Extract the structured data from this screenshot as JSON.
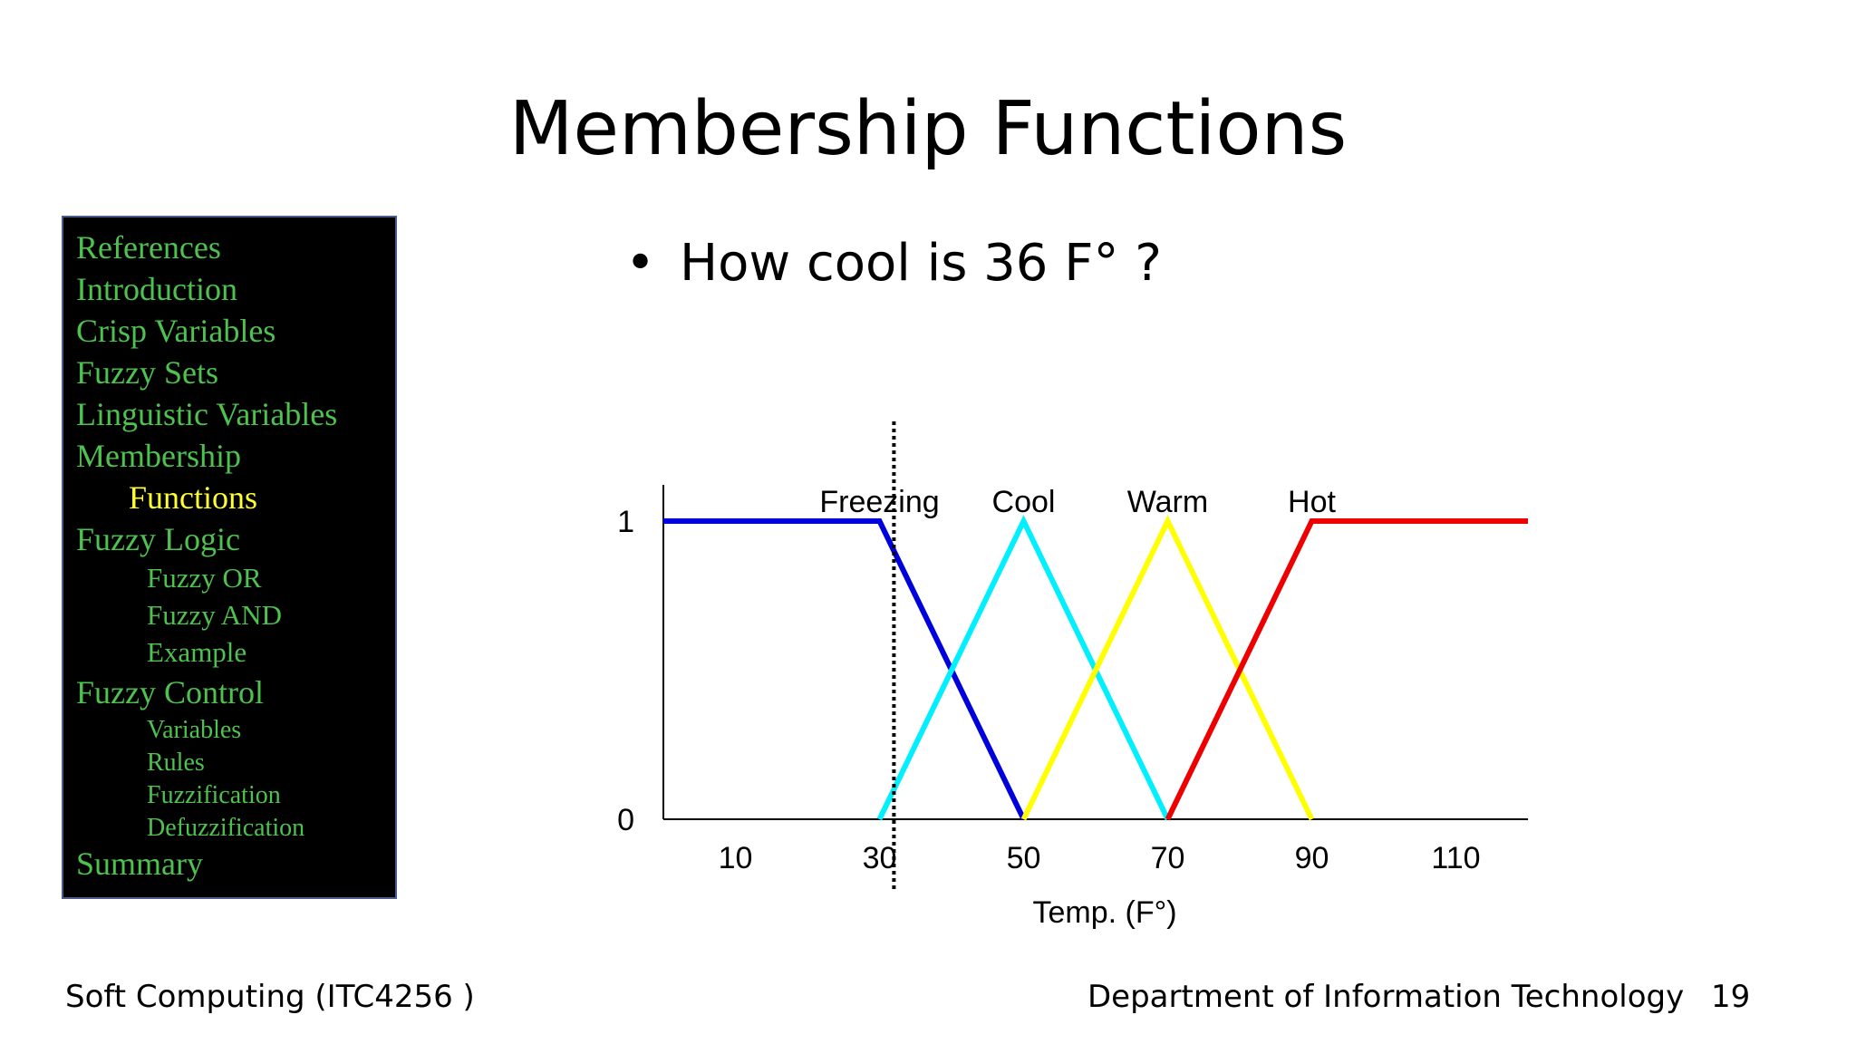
{
  "slide": {
    "title": "Membership Functions",
    "bullet": "How cool is 36 F° ?",
    "footer_left": "Soft Computing (ITC4256 )",
    "footer_center": "Department of Information Technology",
    "page_number": "19"
  },
  "nav": {
    "items": [
      {
        "label": "References",
        "level": 0
      },
      {
        "label": "Introduction",
        "level": 0
      },
      {
        "label": "Crisp Variables",
        "level": 0
      },
      {
        "label": "Fuzzy Sets",
        "level": 0
      },
      {
        "label": "Linguistic Variables",
        "level": 0
      },
      {
        "label": "Membership",
        "level": 0
      },
      {
        "label": "Functions",
        "level": 1,
        "active": true
      },
      {
        "label": "Fuzzy Logic",
        "level": 0
      },
      {
        "label": "Fuzzy OR",
        "level": 2
      },
      {
        "label": "Fuzzy AND",
        "level": 2
      },
      {
        "label": "Example",
        "level": 2
      },
      {
        "label": "Fuzzy Control",
        "level": 0
      },
      {
        "label": "Variables",
        "level": 3
      },
      {
        "label": "Rules",
        "level": 3
      },
      {
        "label": "Fuzzification",
        "level": 3
      },
      {
        "label": "Defuzzification",
        "level": 3
      },
      {
        "label": "Summary",
        "level": 0
      }
    ],
    "colors": {
      "text": "#4ec24e",
      "active": "#ffff33",
      "background": "#000000"
    }
  },
  "chart_data": {
    "type": "line",
    "xlabel": "Temp. (F°)",
    "ylabel": "",
    "xlim": [
      0,
      120
    ],
    "ylim": [
      0,
      1
    ],
    "x_ticks": [
      10,
      30,
      50,
      70,
      90,
      110
    ],
    "y_ticks": [
      0,
      1
    ],
    "marker_line": {
      "x": 32,
      "style": "dotted"
    },
    "series": [
      {
        "name": "Freezing",
        "color": "#0000dd",
        "points": [
          [
            0,
            1
          ],
          [
            30,
            1
          ],
          [
            50,
            0
          ]
        ],
        "label_x": 30
      },
      {
        "name": "Cool",
        "color": "#00f0ff",
        "points": [
          [
            30,
            0
          ],
          [
            50,
            1
          ],
          [
            70,
            0
          ]
        ],
        "label_x": 50
      },
      {
        "name": "Warm",
        "color": "#ffff00",
        "points": [
          [
            50,
            0
          ],
          [
            70,
            1
          ],
          [
            90,
            0
          ]
        ],
        "label_x": 70
      },
      {
        "name": "Hot",
        "color": "#ee0000",
        "points": [
          [
            70,
            0
          ],
          [
            90,
            1
          ],
          [
            120,
            1
          ]
        ],
        "label_x": 90
      }
    ]
  }
}
